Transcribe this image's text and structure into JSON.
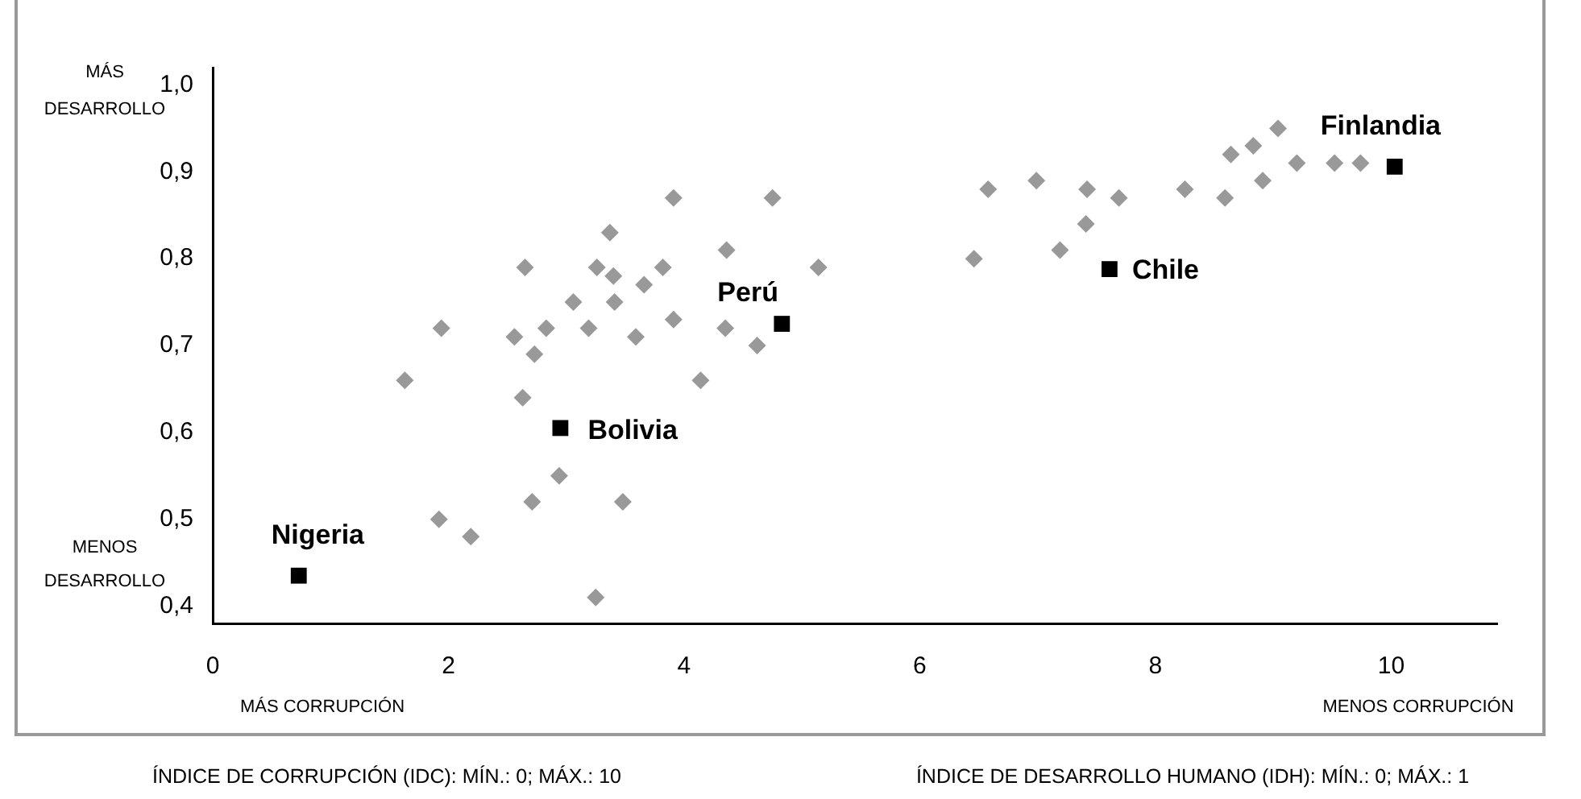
{
  "chart_data": {
    "type": "scatter",
    "xlim": [
      0,
      10.9
    ],
    "xticks": [
      0,
      2,
      4,
      6,
      8,
      10
    ],
    "ylim": [
      0.38,
      1.02
    ],
    "yticks": [
      {
        "value": 0.4,
        "label": "0,4"
      },
      {
        "value": 0.5,
        "label": "0,5"
      },
      {
        "value": 0.6,
        "label": "0,6"
      },
      {
        "value": 0.7,
        "label": "0,7"
      },
      {
        "value": 0.8,
        "label": "0,8"
      },
      {
        "value": 0.9,
        "label": "0,9"
      },
      {
        "value": 1.0,
        "label": "1,0"
      }
    ],
    "grid": false,
    "legend": false,
    "series": [
      {
        "color": "#999999",
        "marker": "diamond",
        "x": [
          3.91,
          4.75,
          3.37,
          4.36,
          5.14,
          2.65,
          3.26,
          3.4,
          3.82,
          3.66,
          3.06,
          3.41,
          1.94,
          2.56,
          2.83,
          3.19,
          3.91,
          4.35,
          3.59,
          2.73,
          4.62,
          1.63,
          4.14,
          2.63,
          2.94,
          2.71,
          3.48,
          1.92,
          2.19,
          3.25,
          6.58,
          6.99,
          7.42,
          7.69,
          8.25,
          8.59,
          8.64,
          8.83,
          9.04,
          8.91,
          9.2,
          9.52,
          9.74,
          6.46,
          7.19,
          7.41
        ],
        "values": [
          0.87,
          0.87,
          0.83,
          0.81,
          0.79,
          0.79,
          0.79,
          0.78,
          0.79,
          0.77,
          0.75,
          0.75,
          0.72,
          0.71,
          0.72,
          0.72,
          0.73,
          0.72,
          0.71,
          0.69,
          0.7,
          0.66,
          0.66,
          0.64,
          0.55,
          0.52,
          0.52,
          0.5,
          0.48,
          0.41,
          0.88,
          0.89,
          0.88,
          0.87,
          0.88,
          0.87,
          0.92,
          0.93,
          0.95,
          0.89,
          0.91,
          0.91,
          0.91,
          0.8,
          0.81,
          0.84
        ]
      },
      {
        "color": "#000000",
        "marker": "square",
        "x": [
          0.73,
          2.95,
          4.83,
          7.61,
          10.03
        ],
        "values": [
          0.435,
          0.605,
          0.725,
          0.788,
          0.906
        ]
      }
    ],
    "annotations": [
      {
        "text": "Nigeria",
        "x": 0.73,
        "y": 0.435
      },
      {
        "text": "Bolivia",
        "x": 2.95,
        "y": 0.605
      },
      {
        "text": "Perú",
        "x": 4.83,
        "y": 0.725
      },
      {
        "text": "Chile",
        "x": 7.61,
        "y": 0.788
      },
      {
        "text": "Finlandia",
        "x": 10.03,
        "y": 0.906
      },
      "MÁS DESARROLLO",
      "MENOS DESARROLLO",
      "MÁS CORRUPCIÓN",
      "MENOS CORRUPCIÓN",
      "ÍNDICE DE CORRUPCIÓN (IDC): MÍN.: 0; MÁX.: 10",
      "ÍNDICE DE DESARROLLO HUMANO (IDH): MÍN.: 0; MÁX.: 1"
    ]
  }
}
